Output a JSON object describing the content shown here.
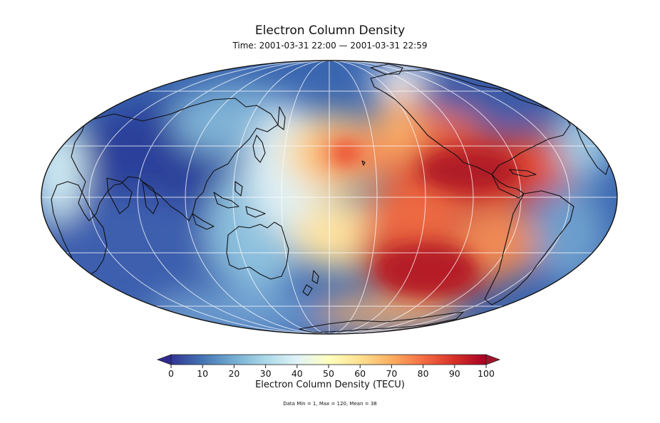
{
  "title": "Electron Column Density",
  "subtitle": "Time: 2001-03-31 22:00 — 2001-03-31 22:59",
  "colorbar": {
    "label": "Electron Column Density (TECU)",
    "ticks": [
      "0",
      "10",
      "20",
      "30",
      "40",
      "50",
      "60",
      "70",
      "80",
      "90",
      "100"
    ],
    "range": [
      0,
      100
    ],
    "extend": "both",
    "colormap": [
      "#313695",
      "#4575b4",
      "#74add1",
      "#abd9e9",
      "#e0f3f8",
      "#ffffbf",
      "#fee090",
      "#fdae61",
      "#f46d43",
      "#d73027",
      "#a50026"
    ]
  },
  "stats": "Data Min = 1, Max = 120, Mean = 38",
  "map": {
    "projection": "Mollweide",
    "central_meridian": "Pacific (~180°)",
    "graticule": "on",
    "features": [
      "coastlines"
    ]
  }
}
